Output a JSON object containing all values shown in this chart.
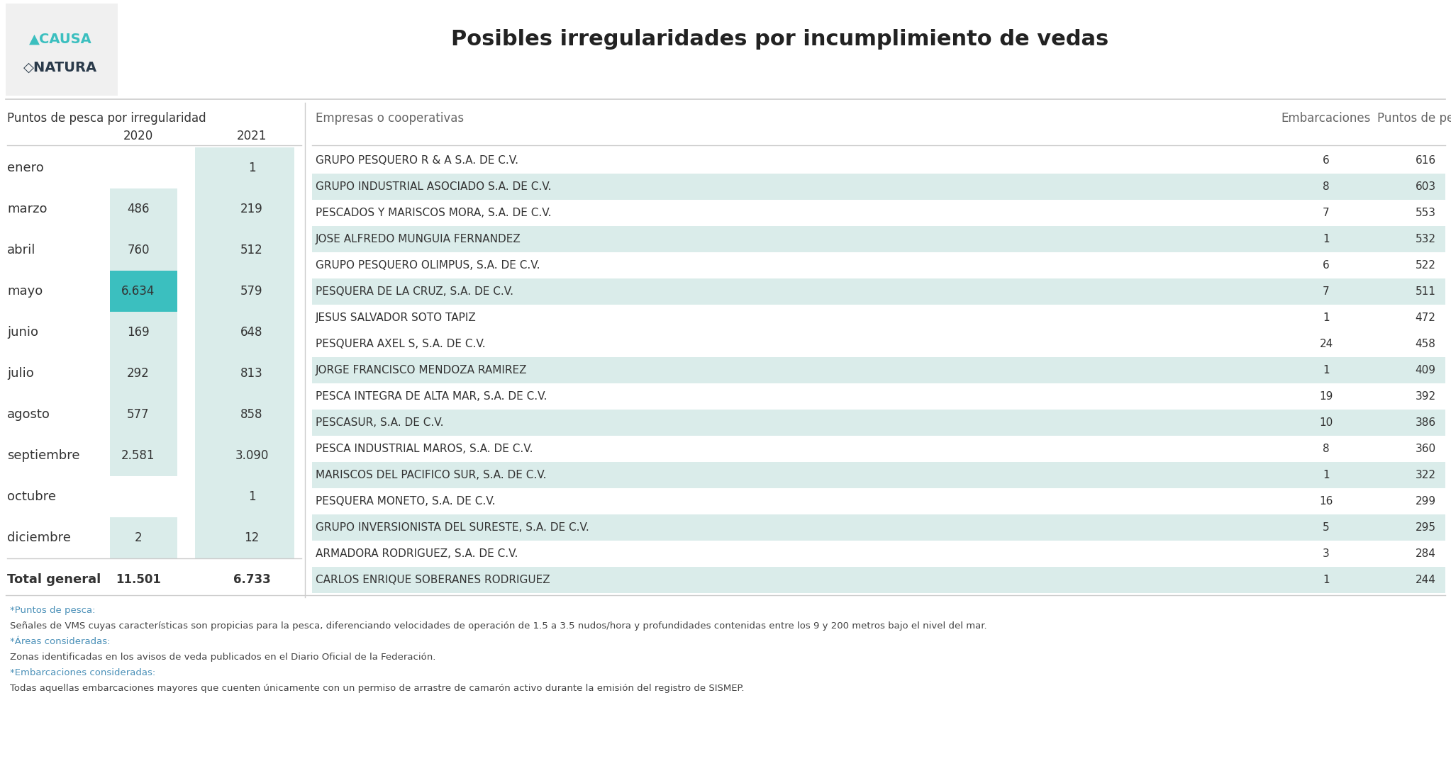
{
  "title": "Posibles irregularidades por incumplimiento de vedas",
  "bg_color": "#ffffff",
  "left_table_title": "Puntos de pesca por irregularidad",
  "left_col_headers": [
    "2020",
    "2021"
  ],
  "left_rows": [
    {
      "label": "enero",
      "val2020": null,
      "val2021": 1,
      "h2020": false,
      "h2021": true
    },
    {
      "label": "marzo",
      "val2020": 486,
      "val2021": 219,
      "h2020": false,
      "h2021": false
    },
    {
      "label": "abril",
      "val2020": 760,
      "val2021": 512,
      "h2020": false,
      "h2021": false
    },
    {
      "label": "mayo",
      "val2020": 6634,
      "val2021": 579,
      "h2020": true,
      "h2021": false
    },
    {
      "label": "junio",
      "val2020": 169,
      "val2021": 648,
      "h2020": false,
      "h2021": false
    },
    {
      "label": "julio",
      "val2020": 292,
      "val2021": 813,
      "h2020": false,
      "h2021": false
    },
    {
      "label": "agosto",
      "val2020": 577,
      "val2021": 858,
      "h2020": false,
      "h2021": false
    },
    {
      "label": "septiembre",
      "val2020": 2581,
      "val2021": 3090,
      "h2020": false,
      "h2021": true
    },
    {
      "label": "octubre",
      "val2020": null,
      "val2021": 1,
      "h2020": false,
      "h2021": false
    },
    {
      "label": "diciembre",
      "val2020": 2,
      "val2021": 12,
      "h2020": false,
      "h2021": false
    }
  ],
  "left_total_label": "Total general",
  "left_total_2020": "11.501",
  "left_total_2021": "6.733",
  "right_table_title_company": "Empresas o cooperativas",
  "right_table_title_boats": "Embarcaciones",
  "right_table_title_points": "Puntos de pesca",
  "right_rows": [
    {
      "company": "GRUPO PESQUERO R & A S.A. DE C.V.",
      "boats": 6,
      "points": 616,
      "highlight": false
    },
    {
      "company": "GRUPO INDUSTRIAL ASOCIADO S.A. DE C.V.",
      "boats": 8,
      "points": 603,
      "highlight": true
    },
    {
      "company": "PESCADOS Y MARISCOS MORA, S.A. DE C.V.",
      "boats": 7,
      "points": 553,
      "highlight": false
    },
    {
      "company": "JOSE ALFREDO MUNGUIA FERNANDEZ",
      "boats": 1,
      "points": 532,
      "highlight": true
    },
    {
      "company": "GRUPO PESQUERO OLIMPUS, S.A. DE C.V.",
      "boats": 6,
      "points": 522,
      "highlight": false
    },
    {
      "company": "PESQUERA DE LA CRUZ, S.A. DE C.V.",
      "boats": 7,
      "points": 511,
      "highlight": true
    },
    {
      "company": "JESUS SALVADOR SOTO TAPIZ",
      "boats": 1,
      "points": 472,
      "highlight": false
    },
    {
      "company": "PESQUERA AXEL S, S.A. DE C.V.",
      "boats": 24,
      "points": 458,
      "highlight": false
    },
    {
      "company": "JORGE FRANCISCO MENDOZA RAMIREZ",
      "boats": 1,
      "points": 409,
      "highlight": true
    },
    {
      "company": "PESCA INTEGRA DE ALTA MAR, S.A. DE C.V.",
      "boats": 19,
      "points": 392,
      "highlight": false
    },
    {
      "company": "PESCASUR, S.A. DE C.V.",
      "boats": 10,
      "points": 386,
      "highlight": true
    },
    {
      "company": "PESCA INDUSTRIAL MAROS, S.A. DE C.V.",
      "boats": 8,
      "points": 360,
      "highlight": false
    },
    {
      "company": "MARISCOS DEL PACIFICO SUR, S.A. DE C.V.",
      "boats": 1,
      "points": 322,
      "highlight": true
    },
    {
      "company": "PESQUERA MONETO, S.A. DE C.V.",
      "boats": 16,
      "points": 299,
      "highlight": false
    },
    {
      "company": "GRUPO INVERSIONISTA DEL SURESTE, S.A. DE C.V.",
      "boats": 5,
      "points": 295,
      "highlight": true
    },
    {
      "company": "ARMADORA RODRIGUEZ, S.A. DE C.V.",
      "boats": 3,
      "points": 284,
      "highlight": false
    },
    {
      "company": "CARLOS ENRIQUE SOBERANES RODRIGUEZ",
      "boats": 1,
      "points": 244,
      "highlight": true
    }
  ],
  "footer_lines": [
    {
      "text": "*Puntos de pesca:",
      "color": "#4a90b8",
      "bold": false,
      "italic": false
    },
    {
      "text": "Señales de VMS cuyas características son propicias para la pesca, diferenciando velocidades de operación de 1.5 a 3.5 nudos/hora y profundidades contenidas entre los 9 y 200 metros bajo el nivel del mar.",
      "color": "#444444",
      "bold": false,
      "italic": false
    },
    {
      "text": "*Áreas consideradas:",
      "color": "#4a90b8",
      "bold": false,
      "italic": false
    },
    {
      "text": "Zonas identificadas en los avisos de veda publicados en el Diario Oficial de la Federación.",
      "color": "#444444",
      "bold": false,
      "italic": false
    },
    {
      "text": "*Embarcaciones consideradas:",
      "color": "#4a90b8",
      "bold": false,
      "italic": false
    },
    {
      "text": "Todas aquellas embarcaciones mayores que cuenten únicamente con un permiso de arrastre de camarón activo durante la emisión del registro de SISMEP.",
      "color": "#444444",
      "bold": false,
      "italic": false
    }
  ],
  "color_light": "#daecea",
  "color_strong": "#3bbfbf",
  "color_sep": "#cccccc",
  "color_dark": "#333333",
  "color_gray": "#666666",
  "color_white": "#ffffff",
  "logo_bg": "#f0f0f0"
}
